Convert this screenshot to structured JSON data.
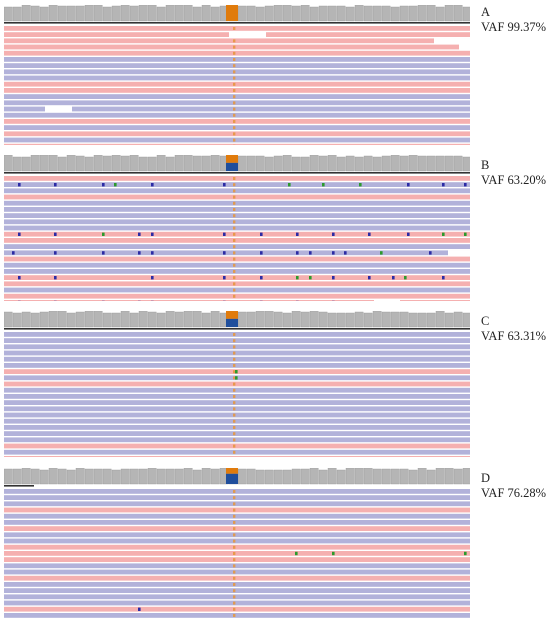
{
  "colors": {
    "coverage": "#b5b5b5",
    "coverage_edge": "#9a9a9a",
    "forward_read": "#f5b0b0",
    "reverse_read": "#b2b2da",
    "variant_ref": "#e07b0c",
    "variant_alt": "#1f4e9c",
    "center_base": "#e6953a",
    "mismatch_c": "#2b2ba5",
    "mismatch_a": "#2c9a2c",
    "gap": "#ffffff"
  },
  "panels": [
    {
      "letter": "A",
      "vaf": "VAF 99.37%",
      "alt_fraction": 0.9937
    },
    {
      "letter": "B",
      "vaf": "VAF 63.20%",
      "alt_fraction": 0.632
    },
    {
      "letter": "C",
      "vaf": "VAF 63.31%",
      "alt_fraction": 0.6331
    },
    {
      "letter": "D",
      "vaf": "VAF 76.28%",
      "alt_fraction": 0.7628
    }
  ]
}
